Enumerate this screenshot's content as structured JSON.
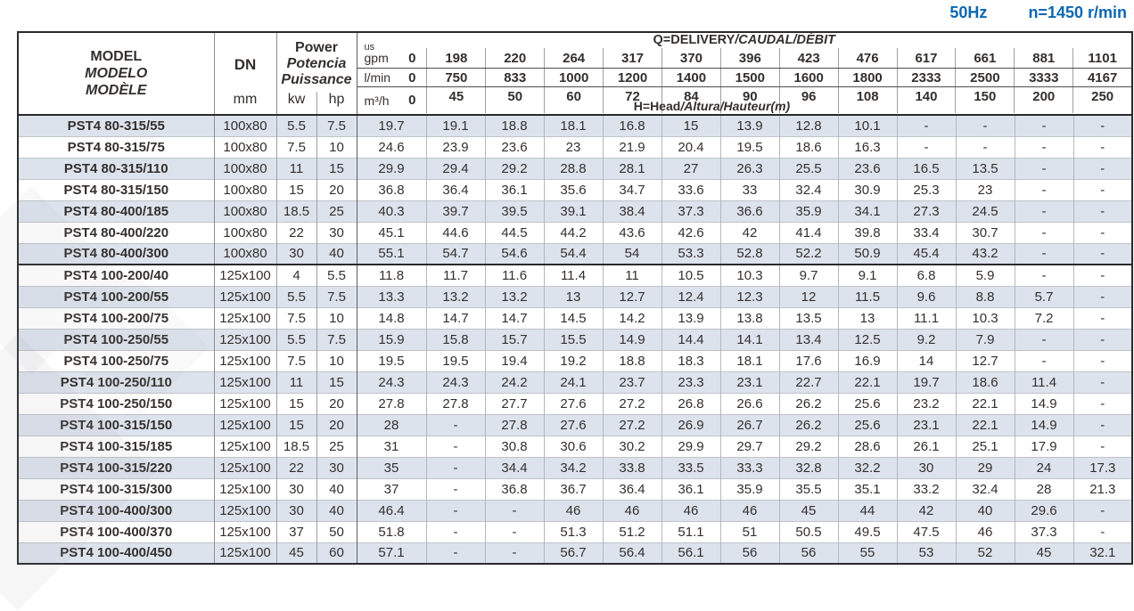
{
  "meta": {
    "frequency": "50Hz",
    "speed": "n=1450 r/min",
    "accent_blue": "#0b67b2",
    "row_alt_color": "#dde3ed"
  },
  "header": {
    "model_lines": [
      "MODEL",
      "MODELO",
      "MODÈLE"
    ],
    "model_unit": "mm",
    "dn_label": "DN",
    "dn_unit": "mm",
    "power_lines": [
      "Power",
      "Potencia",
      "Puissance"
    ],
    "power_units": [
      "kw",
      "hp"
    ],
    "delivery_title_plain": "Q=DELIVERY",
    "delivery_title_italic": "/CAUDAL/DÉBIT",
    "head_note_plain": "H=Head",
    "head_note_italic": "/Altura/Hauteur(m)",
    "unit_rows": [
      {
        "label_small": "us",
        "label": "gpm",
        "zero": "0",
        "values": [
          "198",
          "220",
          "264",
          "317",
          "370",
          "396",
          "423",
          "476",
          "617",
          "661",
          "881",
          "1101"
        ]
      },
      {
        "label": "l/min",
        "zero": "0",
        "values": [
          "750",
          "833",
          "1000",
          "1200",
          "1400",
          "1500",
          "1600",
          "1800",
          "2333",
          "2500",
          "3333",
          "4167"
        ]
      },
      {
        "label": "m³/h",
        "zero": "0",
        "values": [
          "45",
          "50",
          "60",
          "72",
          "84",
          "90",
          "96",
          "108",
          "140",
          "150",
          "200",
          "250"
        ]
      }
    ]
  },
  "table": {
    "rows": [
      {
        "model": "PST4 80-315/55",
        "dn": "100x80",
        "kw": "5.5",
        "hp": "7.5",
        "values": [
          "19.7",
          "19.1",
          "18.8",
          "18.1",
          "16.8",
          "15",
          "13.9",
          "12.8",
          "10.1",
          "-",
          "-",
          "-",
          "-"
        ]
      },
      {
        "model": "PST4 80-315/75",
        "dn": "100x80",
        "kw": "7.5",
        "hp": "10",
        "values": [
          "24.6",
          "23.9",
          "23.6",
          "23",
          "21.9",
          "20.4",
          "19.5",
          "18.6",
          "16.3",
          "-",
          "-",
          "-",
          "-"
        ]
      },
      {
        "model": "PST4 80-315/110",
        "dn": "100x80",
        "kw": "11",
        "hp": "15",
        "values": [
          "29.9",
          "29.4",
          "29.2",
          "28.8",
          "28.1",
          "27",
          "26.3",
          "25.5",
          "23.6",
          "16.5",
          "13.5",
          "-",
          "-"
        ]
      },
      {
        "model": "PST4 80-315/150",
        "dn": "100x80",
        "kw": "15",
        "hp": "20",
        "values": [
          "36.8",
          "36.4",
          "36.1",
          "35.6",
          "34.7",
          "33.6",
          "33",
          "32.4",
          "30.9",
          "25.3",
          "23",
          "-",
          "-"
        ]
      },
      {
        "model": "PST4 80-400/185",
        "dn": "100x80",
        "kw": "18.5",
        "hp": "25",
        "values": [
          "40.3",
          "39.7",
          "39.5",
          "39.1",
          "38.4",
          "37.3",
          "36.6",
          "35.9",
          "34.1",
          "27.3",
          "24.5",
          "-",
          "-"
        ]
      },
      {
        "model": "PST4 80-400/220",
        "dn": "100x80",
        "kw": "22",
        "hp": "30",
        "values": [
          "45.1",
          "44.6",
          "44.5",
          "44.2",
          "43.6",
          "42.6",
          "42",
          "41.4",
          "39.8",
          "33.4",
          "30.7",
          "-",
          "-"
        ]
      },
      {
        "model": "PST4 80-400/300",
        "dn": "100x80",
        "kw": "30",
        "hp": "40",
        "values": [
          "55.1",
          "54.7",
          "54.6",
          "54.4",
          "54",
          "53.3",
          "52.8",
          "52.2",
          "50.9",
          "45.4",
          "43.2",
          "-",
          "-"
        ]
      },
      {
        "model": "PST4 100-200/40",
        "dn": "125x100",
        "kw": "4",
        "hp": "5.5",
        "group_start": true,
        "values": [
          "11.8",
          "11.7",
          "11.6",
          "11.4",
          "11",
          "10.5",
          "10.3",
          "9.7",
          "9.1",
          "6.8",
          "5.9",
          "-",
          "-"
        ]
      },
      {
        "model": "PST4 100-200/55",
        "dn": "125x100",
        "kw": "5.5",
        "hp": "7.5",
        "values": [
          "13.3",
          "13.2",
          "13.2",
          "13",
          "12.7",
          "12.4",
          "12.3",
          "12",
          "11.5",
          "9.6",
          "8.8",
          "5.7",
          "-"
        ]
      },
      {
        "model": "PST4 100-200/75",
        "dn": "125x100",
        "kw": "7.5",
        "hp": "10",
        "values": [
          "14.8",
          "14.7",
          "14.7",
          "14.5",
          "14.2",
          "13.9",
          "13.8",
          "13.5",
          "13",
          "11.1",
          "10.3",
          "7.2",
          "-"
        ]
      },
      {
        "model": "PST4 100-250/55",
        "dn": "125x100",
        "kw": "5.5",
        "hp": "7.5",
        "values": [
          "15.9",
          "15.8",
          "15.7",
          "15.5",
          "14.9",
          "14.4",
          "14.1",
          "13.4",
          "12.5",
          "9.2",
          "7.9",
          "-",
          "-"
        ]
      },
      {
        "model": "PST4 100-250/75",
        "dn": "125x100",
        "kw": "7.5",
        "hp": "10",
        "values": [
          "19.5",
          "19.5",
          "19.4",
          "19.2",
          "18.8",
          "18.3",
          "18.1",
          "17.6",
          "16.9",
          "14",
          "12.7",
          "-",
          "-"
        ]
      },
      {
        "model": "PST4 100-250/110",
        "dn": "125x100",
        "kw": "11",
        "hp": "15",
        "values": [
          "24.3",
          "24.3",
          "24.2",
          "24.1",
          "23.7",
          "23.3",
          "23.1",
          "22.7",
          "22.1",
          "19.7",
          "18.6",
          "11.4",
          "-"
        ]
      },
      {
        "model": "PST4 100-250/150",
        "dn": "125x100",
        "kw": "15",
        "hp": "20",
        "values": [
          "27.8",
          "27.8",
          "27.7",
          "27.6",
          "27.2",
          "26.8",
          "26.6",
          "26.2",
          "25.6",
          "23.2",
          "22.1",
          "14.9",
          "-"
        ]
      },
      {
        "model": "PST4 100-315/150",
        "dn": "125x100",
        "kw": "15",
        "hp": "20",
        "values": [
          "28",
          "-",
          "27.8",
          "27.6",
          "27.2",
          "26.9",
          "26.7",
          "26.2",
          "25.6",
          "23.1",
          "22.1",
          "14.9",
          "-"
        ]
      },
      {
        "model": "PST4 100-315/185",
        "dn": "125x100",
        "kw": "18.5",
        "hp": "25",
        "values": [
          "31",
          "-",
          "30.8",
          "30.6",
          "30.2",
          "29.9",
          "29.7",
          "29.2",
          "28.6",
          "26.1",
          "25.1",
          "17.9",
          "-"
        ]
      },
      {
        "model": "PST4 100-315/220",
        "dn": "125x100",
        "kw": "22",
        "hp": "30",
        "values": [
          "35",
          "-",
          "34.4",
          "34.2",
          "33.8",
          "33.5",
          "33.3",
          "32.8",
          "32.2",
          "30",
          "29",
          "24",
          "17.3"
        ]
      },
      {
        "model": "PST4 100-315/300",
        "dn": "125x100",
        "kw": "30",
        "hp": "40",
        "values": [
          "37",
          "-",
          "36.8",
          "36.7",
          "36.4",
          "36.1",
          "35.9",
          "35.5",
          "35.1",
          "33.2",
          "32.4",
          "28",
          "21.3"
        ]
      },
      {
        "model": "PST4 100-400/300",
        "dn": "125x100",
        "kw": "30",
        "hp": "40",
        "values": [
          "46.4",
          "-",
          "-",
          "46",
          "46",
          "46",
          "46",
          "45",
          "44",
          "42",
          "40",
          "29.6",
          "-"
        ]
      },
      {
        "model": "PST4 100-400/370",
        "dn": "125x100",
        "kw": "37",
        "hp": "50",
        "values": [
          "51.8",
          "-",
          "-",
          "51.3",
          "51.2",
          "51.1",
          "51",
          "50.5",
          "49.5",
          "47.5",
          "46",
          "37.3",
          "-"
        ]
      },
      {
        "model": "PST4 100-400/450",
        "dn": "125x100",
        "kw": "45",
        "hp": "60",
        "values": [
          "57.1",
          "-",
          "-",
          "56.7",
          "56.4",
          "56.1",
          "56",
          "56",
          "55",
          "53",
          "52",
          "45",
          "32.1"
        ]
      }
    ]
  }
}
